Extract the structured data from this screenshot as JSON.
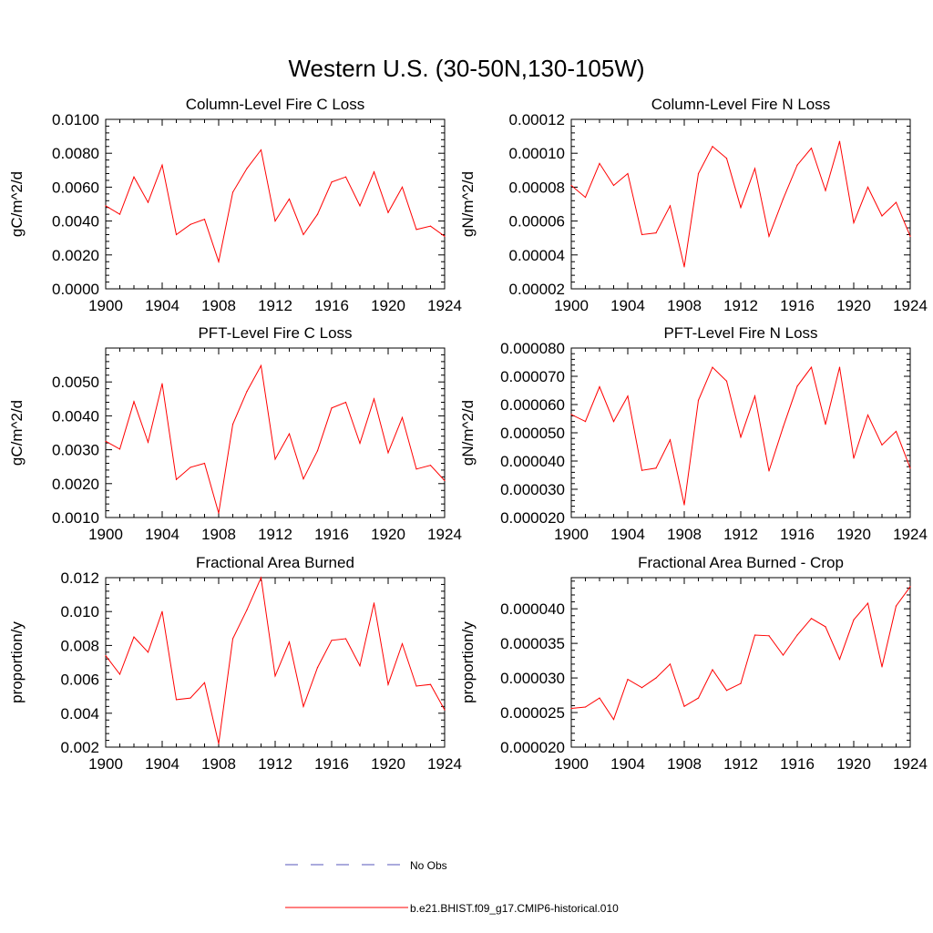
{
  "figure": {
    "title": "Western U.S. (30-50N,130-105W)"
  },
  "legend": [
    {
      "label": "No Obs",
      "color": "#5555bb",
      "dash": true
    },
    {
      "label": "b.e21.BHIST.f09_g17.CMIP6-historical.010",
      "color": "#ff0000",
      "dash": false
    }
  ],
  "chart_data": [
    {
      "type": "line",
      "title": "Column-Level Fire C Loss",
      "xlabel": "",
      "ylabel": "gC/m^2/d",
      "xlim": [
        1900,
        1924
      ],
      "ylim": [
        0.0,
        0.01
      ],
      "xticks": [
        1900,
        1904,
        1908,
        1912,
        1916,
        1920,
        1924
      ],
      "xtick_labels": [
        "1900",
        "1904",
        "1908",
        "1912",
        "1916",
        "1920",
        "1924"
      ],
      "yticks": [
        0.0,
        0.002,
        0.004,
        0.006,
        0.008,
        0.01
      ],
      "ytick_labels": [
        "0.0000",
        "0.0020",
        "0.0040",
        "0.0060",
        "0.0080",
        "0.0100"
      ],
      "x": [
        1900,
        1901,
        1902,
        1903,
        1904,
        1905,
        1906,
        1907,
        1908,
        1909,
        1910,
        1911,
        1912,
        1913,
        1914,
        1915,
        1916,
        1917,
        1918,
        1919,
        1920,
        1921,
        1922,
        1923,
        1924
      ],
      "series": [
        {
          "color": "#ff0000",
          "values": [
            0.0049,
            0.0044,
            0.0066,
            0.0051,
            0.0073,
            0.0032,
            0.0038,
            0.0041,
            0.0016,
            0.0057,
            0.0071,
            0.0082,
            0.004,
            0.0053,
            0.0032,
            0.0044,
            0.0063,
            0.0066,
            0.0049,
            0.0069,
            0.0045,
            0.006,
            0.0035,
            0.0037,
            0.0031
          ]
        }
      ]
    },
    {
      "type": "line",
      "title": "Column-Level Fire N Loss",
      "xlabel": "",
      "ylabel": "gN/m^2/d",
      "xlim": [
        1900,
        1924
      ],
      "ylim": [
        2e-05,
        0.00012
      ],
      "xticks": [
        1900,
        1904,
        1908,
        1912,
        1916,
        1920,
        1924
      ],
      "xtick_labels": [
        "1900",
        "1904",
        "1908",
        "1912",
        "1916",
        "1920",
        "1924"
      ],
      "yticks": [
        2e-05,
        4e-05,
        6e-05,
        8e-05,
        0.0001,
        0.00012
      ],
      "ytick_labels": [
        "0.00002",
        "0.00004",
        "0.00006",
        "0.00008",
        "0.00010",
        "0.00012"
      ],
      "x": [
        1900,
        1901,
        1902,
        1903,
        1904,
        1905,
        1906,
        1907,
        1908,
        1909,
        1910,
        1911,
        1912,
        1913,
        1914,
        1915,
        1916,
        1917,
        1918,
        1919,
        1920,
        1921,
        1922,
        1923,
        1924
      ],
      "series": [
        {
          "color": "#ff0000",
          "values": [
            8.1e-05,
            7.4e-05,
            9.4e-05,
            8.1e-05,
            8.8e-05,
            5.2e-05,
            5.3e-05,
            6.9e-05,
            3.3e-05,
            8.8e-05,
            0.000104,
            9.7e-05,
            6.8e-05,
            9.1e-05,
            5.1e-05,
            7.3e-05,
            9.3e-05,
            0.000103,
            7.8e-05,
            0.000107,
            5.9e-05,
            8e-05,
            6.3e-05,
            7.1e-05,
            5.1e-05
          ]
        }
      ]
    },
    {
      "type": "line",
      "title": "PFT-Level Fire C Loss",
      "xlabel": "",
      "ylabel": "gC/m^2/d",
      "xlim": [
        1900,
        1924
      ],
      "ylim": [
        0.001,
        0.006
      ],
      "xticks": [
        1900,
        1904,
        1908,
        1912,
        1916,
        1920,
        1924
      ],
      "xtick_labels": [
        "1900",
        "1904",
        "1908",
        "1912",
        "1916",
        "1920",
        "1924"
      ],
      "yticks": [
        0.001,
        0.002,
        0.003,
        0.004,
        0.005
      ],
      "ytick_labels": [
        "0.0010",
        "0.0020",
        "0.0030",
        "0.0040",
        "0.0050"
      ],
      "x": [
        1900,
        1901,
        1902,
        1903,
        1904,
        1905,
        1906,
        1907,
        1908,
        1909,
        1910,
        1911,
        1912,
        1913,
        1914,
        1915,
        1916,
        1917,
        1918,
        1919,
        1920,
        1921,
        1922,
        1923,
        1924
      ],
      "series": [
        {
          "color": "#ff0000",
          "values": [
            0.00325,
            0.00302,
            0.00442,
            0.00322,
            0.00495,
            0.00212,
            0.00248,
            0.0026,
            0.00113,
            0.00375,
            0.00472,
            0.00548,
            0.00272,
            0.00347,
            0.00214,
            0.00297,
            0.00423,
            0.0044,
            0.00319,
            0.0045,
            0.00291,
            0.00395,
            0.00243,
            0.00254,
            0.00209
          ]
        }
      ]
    },
    {
      "type": "line",
      "title": "PFT-Level Fire N Loss",
      "xlabel": "",
      "ylabel": "gN/m^2/d",
      "xlim": [
        1900,
        1924
      ],
      "ylim": [
        2e-05,
        8e-05
      ],
      "xticks": [
        1900,
        1904,
        1908,
        1912,
        1916,
        1920,
        1924
      ],
      "xtick_labels": [
        "1900",
        "1904",
        "1908",
        "1912",
        "1916",
        "1920",
        "1924"
      ],
      "yticks": [
        2e-05,
        3e-05,
        4e-05,
        5e-05,
        6e-05,
        7e-05,
        8e-05
      ],
      "ytick_labels": [
        "0.000020",
        "0.000030",
        "0.000040",
        "0.000050",
        "0.000060",
        "0.000070",
        "0.000080"
      ],
      "x": [
        1900,
        1901,
        1902,
        1903,
        1904,
        1905,
        1906,
        1907,
        1908,
        1909,
        1910,
        1911,
        1912,
        1913,
        1914,
        1915,
        1916,
        1917,
        1918,
        1919,
        1920,
        1921,
        1922,
        1923,
        1924
      ],
      "series": [
        {
          "color": "#ff0000",
          "values": [
            5.65e-05,
            5.4e-05,
            6.63e-05,
            5.4e-05,
            6.3e-05,
            3.67e-05,
            3.75e-05,
            4.75e-05,
            2.45e-05,
            6.15e-05,
            7.32e-05,
            6.83e-05,
            4.85e-05,
            6.3e-05,
            3.65e-05,
            5.2e-05,
            6.65e-05,
            7.32e-05,
            5.3e-05,
            7.32e-05,
            4.1e-05,
            5.63e-05,
            4.57e-05,
            5.05e-05,
            3.75e-05
          ]
        }
      ]
    },
    {
      "type": "line",
      "title": "Fractional Area Burned",
      "xlabel": "",
      "ylabel": "proportion/y",
      "xlim": [
        1900,
        1924
      ],
      "ylim": [
        0.002,
        0.012
      ],
      "xticks": [
        1900,
        1904,
        1908,
        1912,
        1916,
        1920,
        1924
      ],
      "xtick_labels": [
        "1900",
        "1904",
        "1908",
        "1912",
        "1916",
        "1920",
        "1924"
      ],
      "yticks": [
        0.002,
        0.004,
        0.006,
        0.008,
        0.01,
        0.012
      ],
      "ytick_labels": [
        "0.002",
        "0.004",
        "0.006",
        "0.008",
        "0.010",
        "0.012"
      ],
      "x": [
        1900,
        1901,
        1902,
        1903,
        1904,
        1905,
        1906,
        1907,
        1908,
        1909,
        1910,
        1911,
        1912,
        1913,
        1914,
        1915,
        1916,
        1917,
        1918,
        1919,
        1920,
        1921,
        1922,
        1923,
        1924
      ],
      "series": [
        {
          "color": "#ff0000",
          "values": [
            0.0074,
            0.0063,
            0.0085,
            0.0076,
            0.01,
            0.0048,
            0.0049,
            0.0058,
            0.0022,
            0.0084,
            0.0101,
            0.012,
            0.0062,
            0.0082,
            0.0044,
            0.0067,
            0.0083,
            0.0084,
            0.0068,
            0.0105,
            0.0057,
            0.0081,
            0.0056,
            0.0057,
            0.0042
          ]
        }
      ]
    },
    {
      "type": "line",
      "title": "Fractional Area Burned - Crop",
      "xlabel": "",
      "ylabel": "proportion/y",
      "xlim": [
        1900,
        1924
      ],
      "ylim": [
        2e-05,
        4.45e-05
      ],
      "xticks": [
        1900,
        1904,
        1908,
        1912,
        1916,
        1920,
        1924
      ],
      "xtick_labels": [
        "1900",
        "1904",
        "1908",
        "1912",
        "1916",
        "1920",
        "1924"
      ],
      "yticks": [
        2e-05,
        2.5e-05,
        3e-05,
        3.5e-05,
        4e-05
      ],
      "ytick_labels": [
        "0.000020",
        "0.000025",
        "0.000030",
        "0.000035",
        "0.000040"
      ],
      "x": [
        1900,
        1901,
        1902,
        1903,
        1904,
        1905,
        1906,
        1907,
        1908,
        1909,
        1910,
        1911,
        1912,
        1913,
        1914,
        1915,
        1916,
        1917,
        1918,
        1919,
        1920,
        1921,
        1922,
        1923,
        1924
      ],
      "series": [
        {
          "color": "#ff0000",
          "values": [
            2.56e-05,
            2.58e-05,
            2.71e-05,
            2.4e-05,
            2.98e-05,
            2.86e-05,
            3e-05,
            3.2e-05,
            2.59e-05,
            2.71e-05,
            3.12e-05,
            2.82e-05,
            2.92e-05,
            3.62e-05,
            3.61e-05,
            3.33e-05,
            3.62e-05,
            3.86e-05,
            3.74e-05,
            3.27e-05,
            3.84e-05,
            4.08e-05,
            3.16e-05,
            4.04e-05,
            4.32e-05
          ]
        }
      ]
    }
  ]
}
